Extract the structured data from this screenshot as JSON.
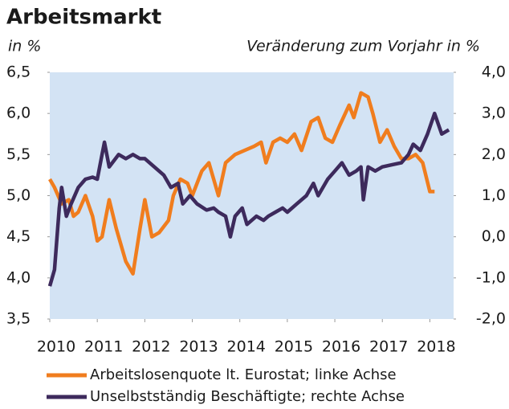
{
  "chart_data": {
    "type": "line",
    "title": "Arbeitsmarkt",
    "y_label": "in %",
    "y2_label": "Veränderung zum Vorjahr in %",
    "xlim": [
      2010,
      2018.5
    ],
    "xticks": [
      2010,
      2011,
      2012,
      2013,
      2014,
      2015,
      2016,
      2017,
      2018
    ],
    "ylim": [
      3.5,
      6.5
    ],
    "yticks": [
      {
        "value": 3.5,
        "label": "3,5"
      },
      {
        "value": 4.0,
        "label": "4,0"
      },
      {
        "value": 4.5,
        "label": "4,5"
      },
      {
        "value": 5.0,
        "label": "5,0"
      },
      {
        "value": 5.5,
        "label": "5,5"
      },
      {
        "value": 6.0,
        "label": "6,0"
      },
      {
        "value": 6.5,
        "label": "6,5"
      }
    ],
    "y2lim": [
      -2,
      4
    ],
    "y2ticks": [
      {
        "value": -2,
        "label": "-2,0"
      },
      {
        "value": -1,
        "label": "-1,0"
      },
      {
        "value": 0,
        "label": "0,0"
      },
      {
        "value": 1,
        "label": "1,0"
      },
      {
        "value": 2,
        "label": "2,0"
      },
      {
        "value": 3,
        "label": "3,0"
      },
      {
        "value": 4,
        "label": "4,0"
      }
    ],
    "background": "#d3e3f4",
    "series": [
      {
        "name": "Arbeitslosenquote lt. Eurostat; linke Achse",
        "color": "#f07d1e",
        "x": [
          2010.0,
          2010.1,
          2010.25,
          2010.4,
          2010.5,
          2010.6,
          2010.75,
          2010.9,
          2011.0,
          2011.1,
          2011.25,
          2011.4,
          2011.6,
          2011.75,
          2011.9,
          2012.0,
          2012.15,
          2012.3,
          2012.5,
          2012.6,
          2012.75,
          2012.9,
          2013.0,
          2013.2,
          2013.35,
          2013.55,
          2013.7,
          2013.9,
          2014.1,
          2014.3,
          2014.45,
          2014.55,
          2014.7,
          2014.85,
          2015.0,
          2015.15,
          2015.3,
          2015.5,
          2015.65,
          2015.8,
          2015.95,
          2016.1,
          2016.3,
          2016.4,
          2016.55,
          2016.7,
          2016.8,
          2016.95,
          2017.1,
          2017.25,
          2017.4,
          2017.55,
          2017.7,
          2017.85,
          2018.0,
          2018.1
        ],
        "values": [
          5.2,
          5.1,
          4.9,
          4.95,
          4.75,
          4.8,
          5.0,
          4.75,
          4.45,
          4.5,
          4.95,
          4.6,
          4.2,
          4.05,
          4.6,
          4.95,
          4.5,
          4.55,
          4.7,
          5.0,
          5.2,
          5.15,
          5.0,
          5.3,
          5.4,
          5.0,
          5.4,
          5.5,
          5.55,
          5.6,
          5.65,
          5.4,
          5.65,
          5.7,
          5.65,
          5.75,
          5.55,
          5.9,
          5.95,
          5.7,
          5.65,
          5.85,
          6.1,
          5.95,
          6.25,
          6.2,
          6.0,
          5.65,
          5.8,
          5.6,
          5.45,
          5.45,
          5.5,
          5.4,
          5.05,
          5.05
        ]
      },
      {
        "name": "Unselbstständig Beschäftigte; rechte Achse",
        "color": "#3d2a5c",
        "axis": "y2",
        "x": [
          2010.0,
          2010.1,
          2010.2,
          2010.25,
          2010.35,
          2010.45,
          2010.6,
          2010.75,
          2010.9,
          2011.0,
          2011.1,
          2011.15,
          2011.25,
          2011.45,
          2011.6,
          2011.75,
          2011.9,
          2012.0,
          2012.2,
          2012.4,
          2012.55,
          2012.7,
          2012.8,
          2012.95,
          2013.1,
          2013.3,
          2013.45,
          2013.55,
          2013.7,
          2013.8,
          2013.9,
          2014.05,
          2014.15,
          2014.35,
          2014.5,
          2014.6,
          2014.75,
          2014.9,
          2015.0,
          2015.2,
          2015.4,
          2015.55,
          2015.65,
          2015.85,
          2016.0,
          2016.15,
          2016.3,
          2016.45,
          2016.55,
          2016.6,
          2016.7,
          2016.85,
          2017.0,
          2017.2,
          2017.4,
          2017.55,
          2017.65,
          2017.8,
          2017.95,
          2018.1,
          2018.25,
          2018.4
        ],
        "values": [
          -1.2,
          -0.8,
          0.7,
          1.2,
          0.5,
          0.8,
          1.2,
          1.4,
          1.45,
          1.4,
          2.0,
          2.3,
          1.7,
          2.0,
          1.9,
          2.0,
          1.9,
          1.9,
          1.7,
          1.5,
          1.2,
          1.3,
          0.8,
          1.0,
          0.8,
          0.65,
          0.7,
          0.6,
          0.5,
          0.0,
          0.5,
          0.7,
          0.3,
          0.5,
          0.4,
          0.5,
          0.6,
          0.7,
          0.6,
          0.8,
          1.0,
          1.3,
          1.0,
          1.4,
          1.6,
          1.8,
          1.5,
          1.6,
          1.7,
          0.9,
          1.7,
          1.6,
          1.7,
          1.75,
          1.8,
          2.0,
          2.25,
          2.1,
          2.5,
          3.0,
          2.5,
          2.6
        ]
      }
    ]
  }
}
